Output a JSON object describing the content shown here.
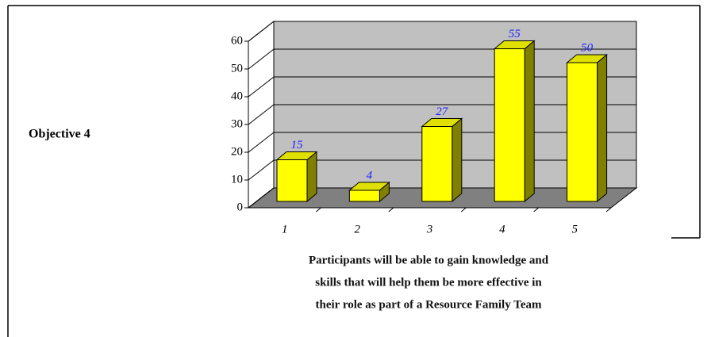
{
  "side_label": "Objective 4",
  "chart_data": {
    "type": "bar3d",
    "categories": [
      "1",
      "2",
      "3",
      "4",
      "5"
    ],
    "values": [
      15,
      4,
      27,
      55,
      50
    ],
    "ylim": [
      0,
      60
    ],
    "yticks": [
      0,
      10,
      20,
      30,
      40,
      50,
      60
    ],
    "grid": true,
    "color": "#ffff00",
    "side_color": "#808000",
    "top_color": "#e0e000",
    "wall_color": "#c0c0c0",
    "floor_color": "#808080",
    "value_label_color": "#2020ff",
    "caption": [
      "Participants will be able to gain knowledge and",
      "skills that will help them be more effective in",
      "their role as part of a Resource Family Team"
    ]
  }
}
